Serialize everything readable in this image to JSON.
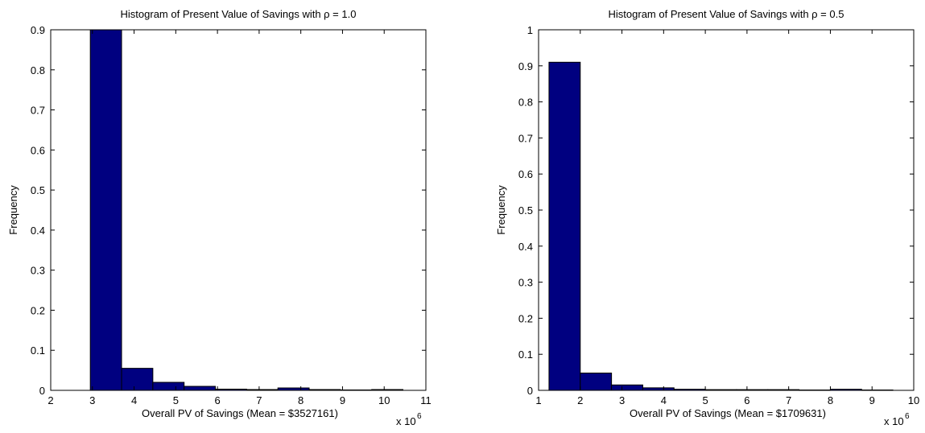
{
  "chart_data": [
    {
      "type": "bar",
      "title": "Histogram of Present Value of Savings with ρ = 1.0",
      "xlabel": "Overall PV of Savings (Mean = $3527161)",
      "ylabel": "Frequency",
      "x_multiplier_label": "x 10",
      "x_multiplier_exp": "6",
      "xlim": [
        2,
        11
      ],
      "ylim": [
        0,
        0.9
      ],
      "xticks": [
        "2",
        "3",
        "4",
        "5",
        "6",
        "7",
        "8",
        "9",
        "10",
        "11"
      ],
      "yticks": [
        "0",
        "0.1",
        "0.2",
        "0.3",
        "0.4",
        "0.5",
        "0.6",
        "0.7",
        "0.8",
        "0.9"
      ],
      "bin_edges": [
        2.95,
        3.7,
        4.45,
        5.2,
        5.95,
        6.7,
        7.45,
        8.2,
        8.95,
        9.7,
        10.45
      ],
      "values": [
        0.9,
        0.055,
        0.02,
        0.01,
        0.003,
        0.002,
        0.006,
        0.002,
        0.001,
        0.002
      ],
      "bar_color": "#000080"
    },
    {
      "type": "bar",
      "title": "Histogram of Present Value of Savings with ρ = 0.5",
      "xlabel": "Overall PV of Savings (Mean = $1709631)",
      "ylabel": "Frequency",
      "x_multiplier_label": "x 10",
      "x_multiplier_exp": "6",
      "xlim": [
        1,
        10
      ],
      "ylim": [
        0,
        1
      ],
      "xticks": [
        "1",
        "2",
        "3",
        "4",
        "5",
        "6",
        "7",
        "8",
        "9",
        "10"
      ],
      "yticks": [
        "0",
        "0.1",
        "0.2",
        "0.3",
        "0.4",
        "0.5",
        "0.6",
        "0.7",
        "0.8",
        "0.9",
        "1"
      ],
      "bin_edges": [
        1.25,
        2.0,
        2.75,
        3.5,
        4.25,
        5.0,
        5.75,
        6.5,
        7.25,
        8.0,
        8.75,
        9.5
      ],
      "values": [
        0.91,
        0.048,
        0.015,
        0.007,
        0.003,
        0.002,
        0.002,
        0.002,
        0.001,
        0.003,
        0.001
      ],
      "bar_color": "#000080"
    }
  ]
}
